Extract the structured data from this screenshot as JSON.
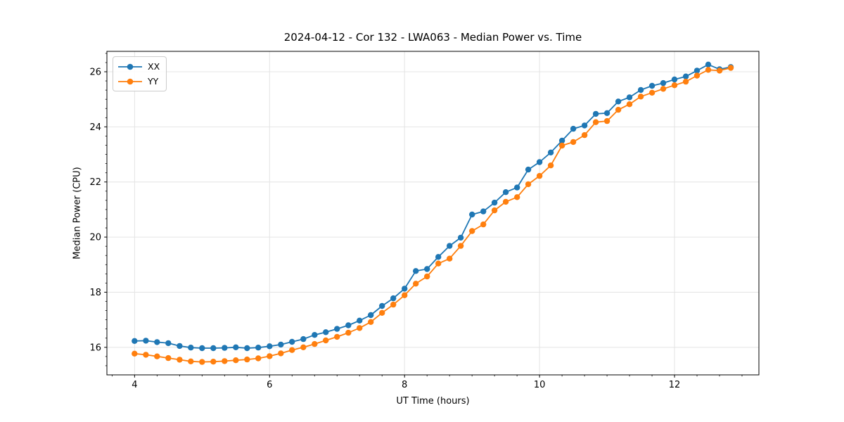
{
  "figure": {
    "background": "#ffffff"
  },
  "chart_data": {
    "type": "line",
    "title": "2024-04-12 - Cor 132 - LWA063 - Median Power vs. Time",
    "xlabel": "UT Time (hours)",
    "ylabel": "Median Power (CPU)",
    "xlim": [
      3.59,
      13.25
    ],
    "ylim": [
      15.0,
      26.74
    ],
    "x_ticks": [
      4,
      6,
      8,
      10,
      12
    ],
    "x_tick_labels": [
      "4",
      "6",
      "8",
      "10",
      "12"
    ],
    "y_ticks": [
      16,
      18,
      20,
      22,
      24,
      26
    ],
    "y_tick_labels": [
      "16",
      "18",
      "20",
      "22",
      "24",
      "26"
    ],
    "minor_tick_step": 0.33333,
    "grid": "major",
    "grid_color": "#e4e4e4",
    "spine_color": "#000000",
    "legend_position": "upper-left",
    "x": [
      4.0,
      4.167,
      4.333,
      4.5,
      4.667,
      4.833,
      5.0,
      5.167,
      5.333,
      5.5,
      5.667,
      5.833,
      6.0,
      6.167,
      6.333,
      6.5,
      6.667,
      6.833,
      7.0,
      7.167,
      7.333,
      7.5,
      7.667,
      7.833,
      8.0,
      8.167,
      8.333,
      8.5,
      8.667,
      8.833,
      9.0,
      9.167,
      9.333,
      9.5,
      9.667,
      9.833,
      10.0,
      10.167,
      10.333,
      10.5,
      10.667,
      10.833,
      11.0,
      11.167,
      11.333,
      11.5,
      11.667,
      11.833,
      12.0,
      12.167,
      12.333,
      12.5,
      12.667,
      12.833
    ],
    "series": [
      {
        "name": "XX",
        "color": "#1f77b4",
        "marker": "circle",
        "values": [
          16.23,
          16.24,
          16.19,
          16.15,
          16.05,
          15.99,
          15.97,
          15.97,
          15.98,
          16.0,
          15.97,
          15.99,
          16.04,
          16.1,
          16.2,
          16.3,
          16.45,
          16.55,
          16.67,
          16.8,
          16.97,
          17.17,
          17.5,
          17.78,
          18.13,
          18.77,
          18.84,
          19.28,
          19.68,
          19.98,
          20.82,
          20.93,
          21.25,
          21.63,
          21.8,
          22.45,
          22.72,
          23.07,
          23.5,
          23.93,
          24.05,
          24.47,
          24.5,
          24.92,
          25.07,
          25.34,
          25.49,
          25.59,
          25.72,
          25.83,
          26.04,
          26.26,
          26.09,
          26.17
        ]
      },
      {
        "name": "YY",
        "color": "#ff7f0e",
        "marker": "circle",
        "values": [
          15.77,
          15.73,
          15.67,
          15.61,
          15.55,
          15.49,
          15.47,
          15.48,
          15.5,
          15.53,
          15.56,
          15.6,
          15.68,
          15.78,
          15.9,
          16.0,
          16.12,
          16.25,
          16.38,
          16.53,
          16.7,
          16.92,
          17.25,
          17.55,
          17.89,
          18.31,
          18.57,
          19.04,
          19.22,
          19.68,
          20.22,
          20.46,
          20.97,
          21.28,
          21.45,
          21.92,
          22.22,
          22.6,
          23.32,
          23.45,
          23.7,
          24.17,
          24.21,
          24.62,
          24.82,
          25.1,
          25.24,
          25.38,
          25.51,
          25.64,
          25.86,
          26.07,
          26.04,
          26.14
        ]
      }
    ]
  }
}
